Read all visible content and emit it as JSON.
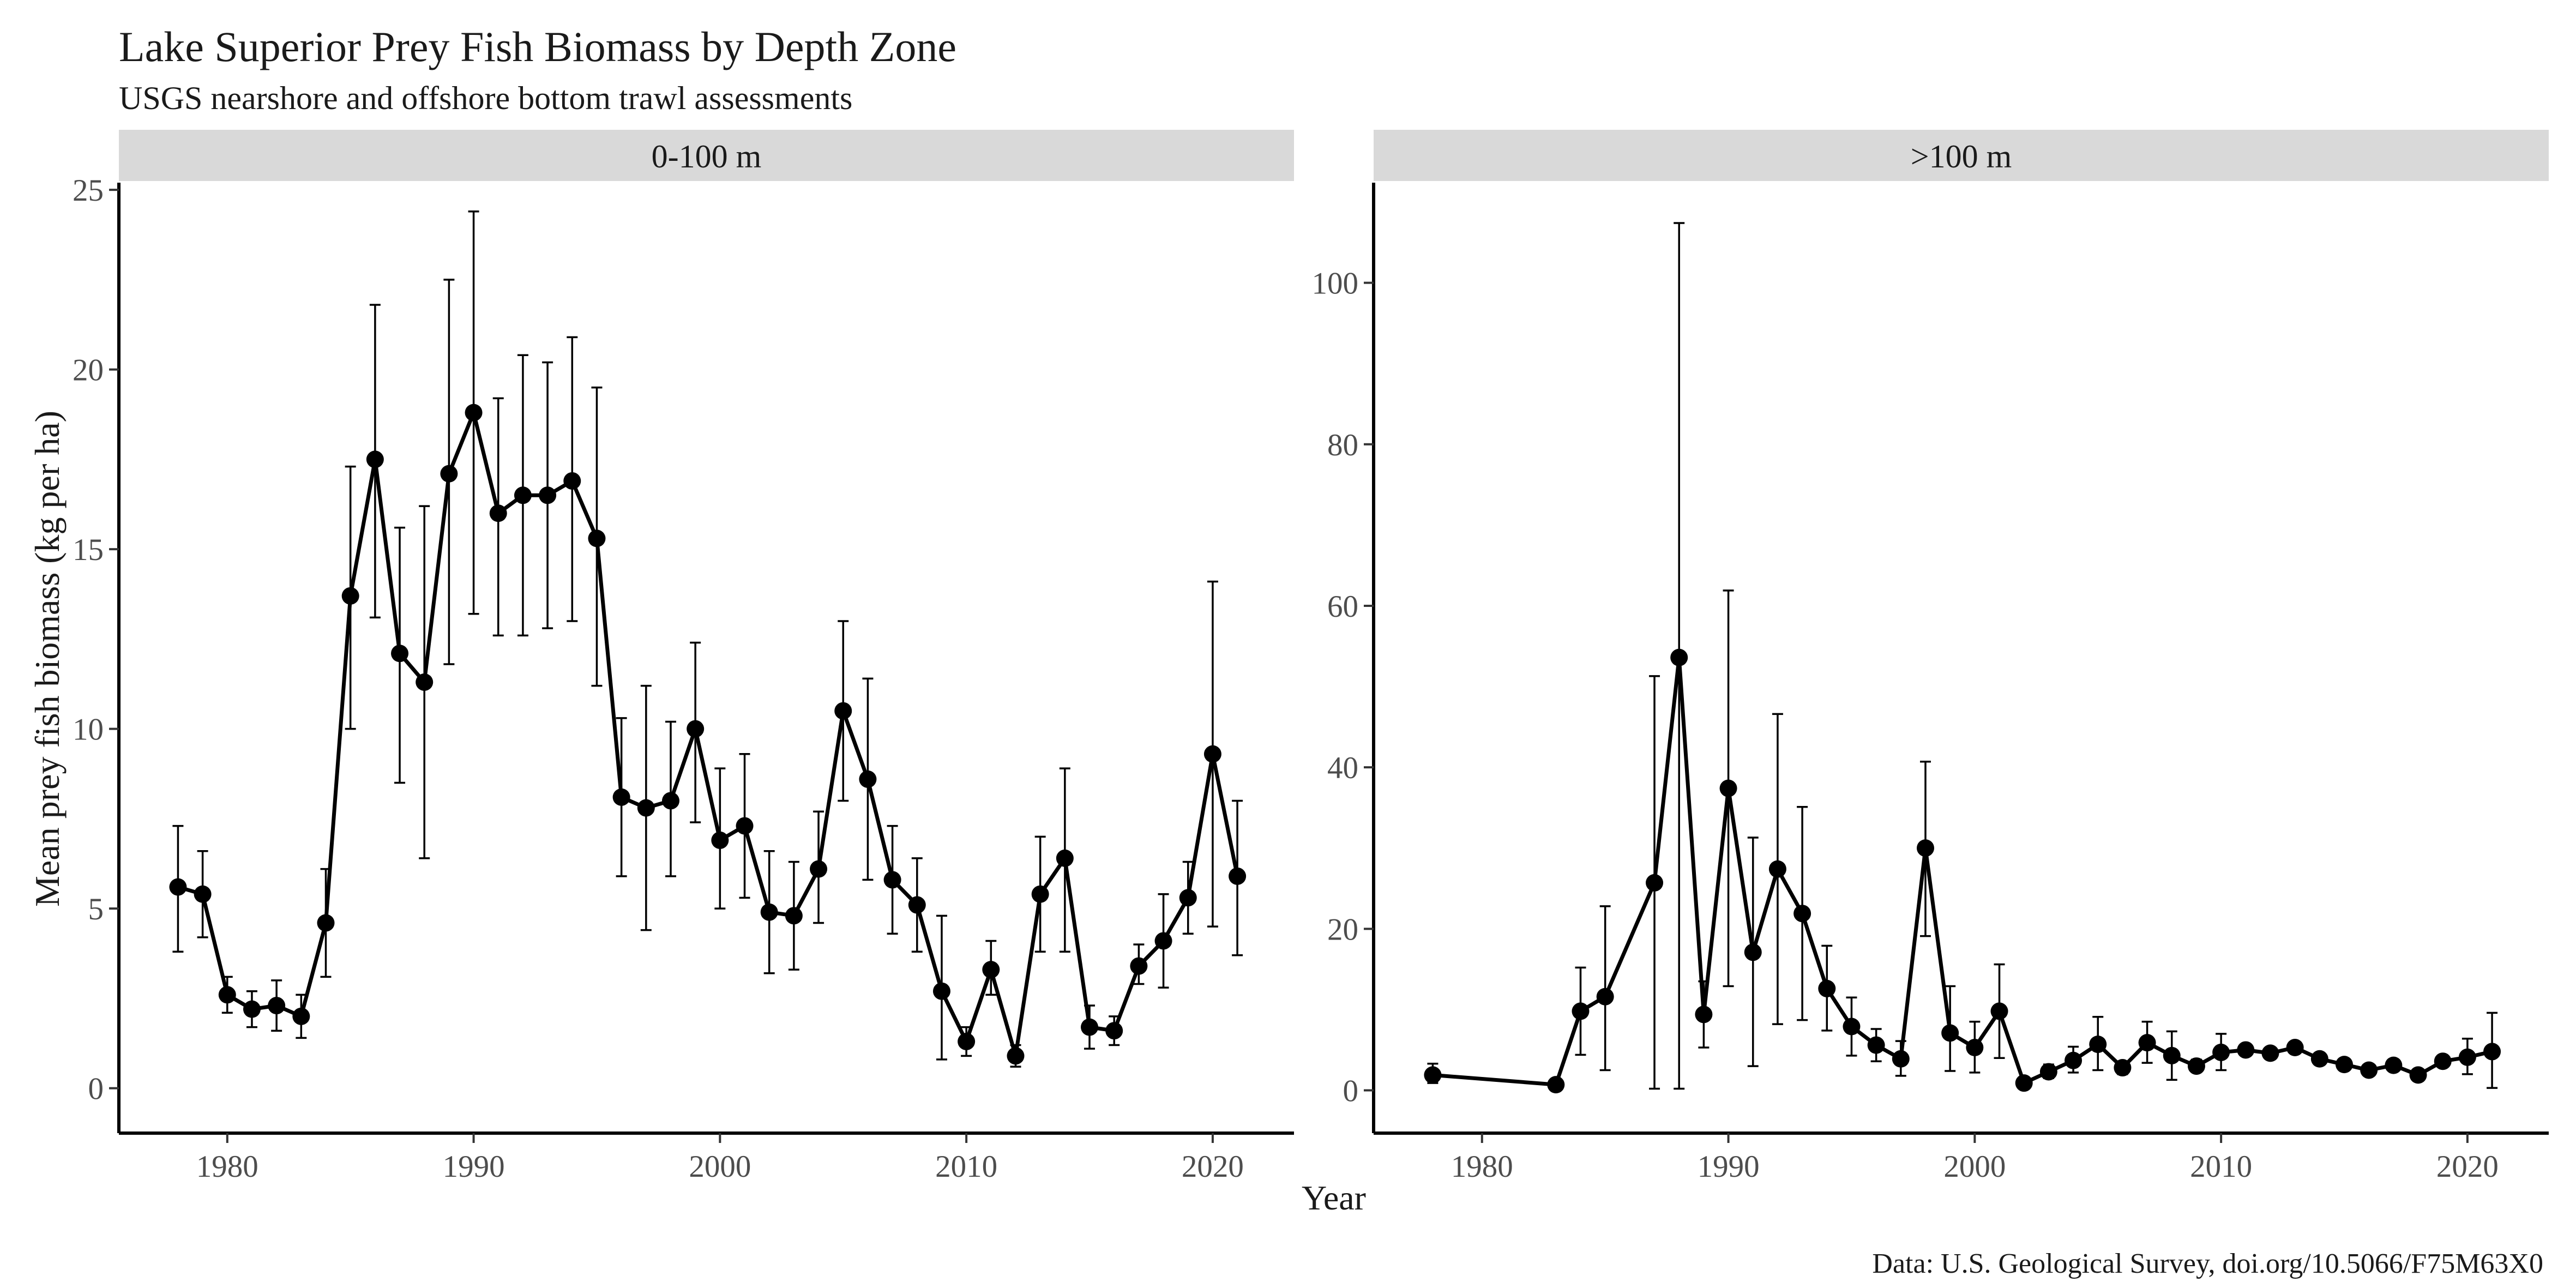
{
  "chart": {
    "title": "Lake Superior Prey Fish Biomass by Depth Zone",
    "subtitle": "USGS nearshore and offshore bottom trawl assessments",
    "ylabel": "Mean prey fish biomass (kg per ha)",
    "xlabel": "Year",
    "caption": "Data: U.S. Geological Survey, doi.org/10.5066/F75M63X0"
  },
  "chart_data": [
    {
      "type": "line",
      "panel": "0-100 m",
      "xlim": [
        1975.6,
        2023.3
      ],
      "ylim": [
        -1.25,
        25.2
      ],
      "xticks": [
        1980,
        1990,
        2000,
        2010,
        2020
      ],
      "yticks": [
        0,
        5,
        10,
        15,
        20,
        25
      ],
      "series": [
        {
          "x": [
            1978,
            1979,
            1980,
            1981,
            1982,
            1983,
            1984,
            1985,
            1986,
            1987,
            1988,
            1989,
            1990,
            1991,
            1992,
            1993,
            1994,
            1995,
            1996,
            1997,
            1998,
            1999,
            2000,
            2001,
            2002,
            2003,
            2004,
            2005,
            2006,
            2007,
            2008,
            2009,
            2010,
            2011,
            2012,
            2013,
            2014,
            2015,
            2016,
            2017,
            2018,
            2019,
            2020,
            2021
          ],
          "y": [
            5.6,
            5.4,
            2.6,
            2.2,
            2.3,
            2.0,
            4.6,
            13.7,
            17.5,
            12.1,
            11.3,
            17.1,
            18.8,
            16.0,
            16.5,
            16.5,
            16.9,
            15.3,
            8.1,
            7.8,
            8.0,
            10.0,
            6.9,
            7.3,
            4.9,
            4.8,
            6.1,
            10.5,
            8.6,
            5.8,
            5.1,
            2.7,
            1.3,
            3.3,
            0.9,
            5.4,
            6.4,
            1.7,
            1.6,
            3.4,
            4.1,
            5.3,
            9.3,
            5.9
          ],
          "lower": [
            3.8,
            4.2,
            2.1,
            1.7,
            1.6,
            1.4,
            3.1,
            10.0,
            13.1,
            8.5,
            6.4,
            11.8,
            13.2,
            12.6,
            12.6,
            12.8,
            13.0,
            11.2,
            5.9,
            4.4,
            5.9,
            7.4,
            5.0,
            5.3,
            3.2,
            3.3,
            4.6,
            8.0,
            5.8,
            4.3,
            3.8,
            0.8,
            0.9,
            2.6,
            0.6,
            3.8,
            3.8,
            1.1,
            1.2,
            2.9,
            2.8,
            4.3,
            4.5,
            3.7
          ],
          "upper": [
            7.3,
            6.6,
            3.1,
            2.7,
            3.0,
            2.6,
            6.1,
            17.3,
            21.8,
            15.6,
            16.2,
            22.5,
            24.4,
            19.2,
            20.4,
            20.2,
            20.9,
            19.5,
            10.3,
            11.2,
            10.2,
            12.4,
            8.9,
            9.3,
            6.6,
            6.3,
            7.7,
            13.0,
            11.4,
            7.3,
            6.4,
            4.8,
            1.7,
            4.1,
            1.2,
            7.0,
            8.9,
            2.3,
            2.0,
            4.0,
            5.4,
            6.3,
            14.1,
            8.0
          ]
        }
      ]
    },
    {
      "type": "line",
      "panel": ">100 m",
      "xlim": [
        1975.6,
        2023.3
      ],
      "ylim": [
        -5.3,
        112.4
      ],
      "xticks": [
        1980,
        1990,
        2000,
        2010,
        2020
      ],
      "yticks": [
        0,
        20,
        40,
        60,
        80,
        100
      ],
      "series": [
        {
          "x": [
            1978,
            1983,
            1984,
            1985,
            1987,
            1988,
            1989,
            1990,
            1991,
            1992,
            1993,
            1994,
            1995,
            1996,
            1997,
            1998,
            1999,
            2000,
            2001,
            2002,
            2003,
            2004,
            2005,
            2006,
            2007,
            2008,
            2009,
            2010,
            2011,
            2012,
            2013,
            2014,
            2015,
            2016,
            2017,
            2018,
            2019,
            2020,
            2021
          ],
          "y": [
            1.9,
            0.7,
            9.8,
            11.6,
            25.7,
            53.6,
            9.4,
            37.4,
            17.1,
            27.4,
            21.9,
            12.6,
            7.9,
            5.6,
            3.9,
            30.0,
            7.1,
            5.3,
            9.8,
            0.9,
            2.3,
            3.7,
            5.7,
            2.8,
            5.9,
            4.3,
            3.0,
            4.7,
            5.0,
            4.6,
            5.3,
            3.9,
            3.2,
            2.5,
            3.1,
            1.9,
            3.6,
            4.1,
            4.8
          ],
          "lower": [
            0.9,
            0.7,
            4.4,
            2.5,
            0.2,
            0.2,
            5.3,
            12.9,
            3.0,
            8.2,
            8.7,
            7.4,
            4.3,
            3.6,
            1.8,
            19.1,
            2.4,
            2.2,
            4.0,
            0.6,
            1.5,
            2.2,
            2.5,
            2.0,
            3.4,
            1.3,
            2.3,
            2.5,
            4.6,
            4.1,
            4.9,
            3.4,
            2.8,
            2.1,
            2.6,
            1.5,
            3.0,
            2.0,
            0.3
          ],
          "upper": [
            3.3,
            0.7,
            15.2,
            22.8,
            51.3,
            107.4,
            13.5,
            61.9,
            31.3,
            46.6,
            35.1,
            17.9,
            11.5,
            7.6,
            6.1,
            40.7,
            12.9,
            8.5,
            15.6,
            1.2,
            3.2,
            5.4,
            9.1,
            3.6,
            8.5,
            7.3,
            3.8,
            7.0,
            5.4,
            5.1,
            5.7,
            4.4,
            3.6,
            2.9,
            3.6,
            2.3,
            4.2,
            6.4,
            9.6
          ]
        }
      ]
    }
  ]
}
